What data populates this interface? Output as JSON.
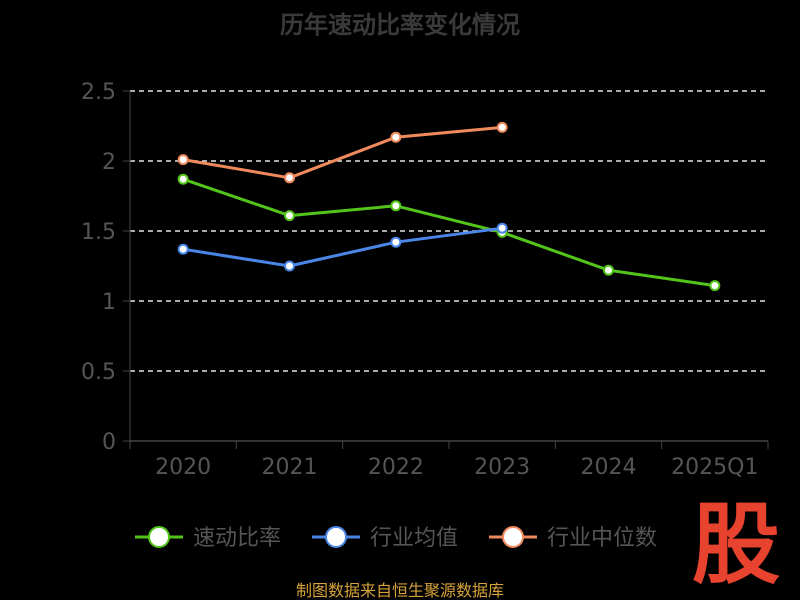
{
  "chart_data": {
    "type": "line",
    "title": "历年速动比率变化情况",
    "categories": [
      "2020",
      "2021",
      "2022",
      "2023",
      "2024",
      "2025Q1"
    ],
    "ylim": [
      0,
      2.5
    ],
    "yticks": [
      "0",
      "0.5",
      "1",
      "1.5",
      "2",
      "2.5"
    ],
    "grid": true,
    "legend_position": "bottom",
    "series": [
      {
        "name": "速动比率",
        "color": "#52c41a",
        "values": [
          1.87,
          1.61,
          1.68,
          1.49,
          1.22,
          1.11
        ]
      },
      {
        "name": "行业均值",
        "color": "#4a86e8",
        "values": [
          1.37,
          1.25,
          1.42,
          1.52,
          null,
          null
        ]
      },
      {
        "name": "行业中位数",
        "color": "#f08a5d",
        "values": [
          2.01,
          1.88,
          2.17,
          2.24,
          null,
          null
        ]
      }
    ]
  },
  "source": "制图数据来自恒生聚源数据库",
  "logo_text": "股"
}
